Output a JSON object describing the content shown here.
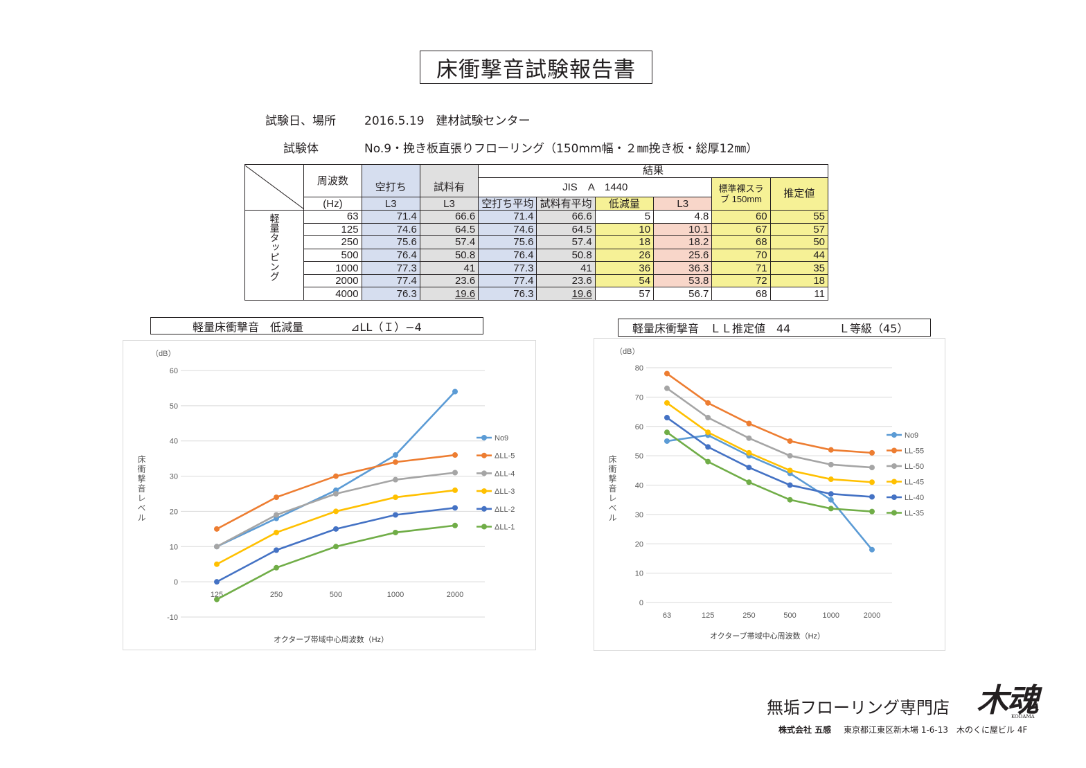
{
  "title": "床衝撃音試験報告書",
  "info": {
    "date_label": "試験日、場所",
    "date_value": "2016.5.19　建材試験センター",
    "specimen_label": "試験体",
    "specimen_value": "No.9・挽き板直張りフローリング（150mm幅・２㎜挽き板・総厚12㎜）"
  },
  "table": {
    "freq_header": "周波数",
    "freq_unit": "(Hz)",
    "result_header": "結果",
    "empty_col": "空打ち",
    "material_col": "試料有",
    "l3": "L3",
    "jis": "JIS　A　1440",
    "empty_avg": "空打ち平均",
    "material_avg": "試料有平均",
    "reduction": "低減量",
    "slab": "標準裸スラブ 150mm",
    "estimate": "推定値",
    "side_label": "軽量タッピング",
    "rows": [
      {
        "freq": "63",
        "empty": "71.4",
        "material": "66.6",
        "empty_avg": "71.4",
        "material_avg": "66.6",
        "reduction": "5",
        "l3": "4.8",
        "slab": "60",
        "estimate": "55"
      },
      {
        "freq": "125",
        "empty": "74.6",
        "material": "64.5",
        "empty_avg": "74.6",
        "material_avg": "64.5",
        "reduction": "10",
        "l3": "10.1",
        "slab": "67",
        "estimate": "57"
      },
      {
        "freq": "250",
        "empty": "75.6",
        "material": "57.4",
        "empty_avg": "75.6",
        "material_avg": "57.4",
        "reduction": "18",
        "l3": "18.2",
        "slab": "68",
        "estimate": "50"
      },
      {
        "freq": "500",
        "empty": "76.4",
        "material": "50.8",
        "empty_avg": "76.4",
        "material_avg": "50.8",
        "reduction": "26",
        "l3": "25.6",
        "slab": "70",
        "estimate": "44"
      },
      {
        "freq": "1000",
        "empty": "77.3",
        "material": "41",
        "empty_avg": "77.3",
        "material_avg": "41",
        "reduction": "36",
        "l3": "36.3",
        "slab": "71",
        "estimate": "35"
      },
      {
        "freq": "2000",
        "empty": "77.4",
        "material": "23.6",
        "empty_avg": "77.4",
        "material_avg": "23.6",
        "reduction": "54",
        "l3": "53.8",
        "slab": "72",
        "estimate": "18"
      },
      {
        "freq": "4000",
        "empty": "76.3",
        "material": "19.6",
        "empty_avg": "76.3",
        "material_avg": "19.6",
        "reduction": "57",
        "l3": "56.7",
        "slab": "68",
        "estimate": "11"
      }
    ]
  },
  "chart_heads": {
    "left_a": "軽量床衝撃音　低減量",
    "left_b": "⊿LL（Ｉ）−4",
    "right_a": "軽量床衝撃音　ＬＬ推定値　44",
    "right_b": "Ｌ等級（45）"
  },
  "chart_data": [
    {
      "type": "line",
      "unit_label": "（dB）",
      "ylabel": "床衝撃音レベル",
      "xlabel": "オクターブ帯域中心周波数（Hz）",
      "categories": [
        "125",
        "250",
        "500",
        "1000",
        "2000"
      ],
      "ylim": [
        -10,
        60
      ],
      "yticks": [
        -10,
        0,
        10,
        20,
        30,
        40,
        50,
        60
      ],
      "grid": true,
      "legend": "right",
      "series": [
        {
          "name": "No9",
          "color": "#5b9bd5",
          "values": [
            10,
            18,
            26,
            36,
            54
          ]
        },
        {
          "name": "ΔLL-5",
          "color": "#ed7d31",
          "values": [
            15,
            24,
            30,
            34,
            36
          ]
        },
        {
          "name": "ΔLL-4",
          "color": "#a5a5a5",
          "values": [
            10,
            19,
            25,
            29,
            31
          ]
        },
        {
          "name": "ΔLL-3",
          "color": "#ffc000",
          "values": [
            5,
            14,
            20,
            24,
            26
          ]
        },
        {
          "name": "ΔLL-2",
          "color": "#4472c4",
          "values": [
            0,
            9,
            15,
            19,
            21
          ]
        },
        {
          "name": "ΔLL-1",
          "color": "#70ad47",
          "values": [
            -5,
            4,
            10,
            14,
            16
          ]
        }
      ]
    },
    {
      "type": "line",
      "unit_label": "（dB）",
      "ylabel": "床衝撃音レベル",
      "xlabel": "オクターブ帯域中心周波数（Hz）",
      "categories": [
        "63",
        "125",
        "250",
        "500",
        "1000",
        "2000"
      ],
      "ylim": [
        0,
        80
      ],
      "yticks": [
        0,
        10,
        20,
        30,
        40,
        50,
        60,
        70,
        80
      ],
      "grid": true,
      "legend": "right",
      "series": [
        {
          "name": "No9",
          "color": "#5b9bd5",
          "values": [
            55,
            57,
            50,
            44,
            35,
            18
          ]
        },
        {
          "name": "LL-55",
          "color": "#ed7d31",
          "values": [
            78,
            68,
            61,
            55,
            52,
            51
          ]
        },
        {
          "name": "LL-50",
          "color": "#a5a5a5",
          "values": [
            73,
            63,
            56,
            50,
            47,
            46
          ]
        },
        {
          "name": "LL-45",
          "color": "#ffc000",
          "values": [
            68,
            58,
            51,
            45,
            42,
            41
          ]
        },
        {
          "name": "LL-40",
          "color": "#4472c4",
          "values": [
            63,
            53,
            46,
            40,
            37,
            36
          ]
        },
        {
          "name": "LL-35",
          "color": "#70ad47",
          "values": [
            58,
            48,
            41,
            35,
            32,
            31
          ]
        }
      ]
    }
  ],
  "footer": {
    "shop": "無垢フローリング専門店",
    "logo": "木魂",
    "logo_sub": "KODAMA",
    "company": "株式会社 五感",
    "address": "東京都江東区新木場 1-6-13　木のくに屋ビル 4F"
  }
}
